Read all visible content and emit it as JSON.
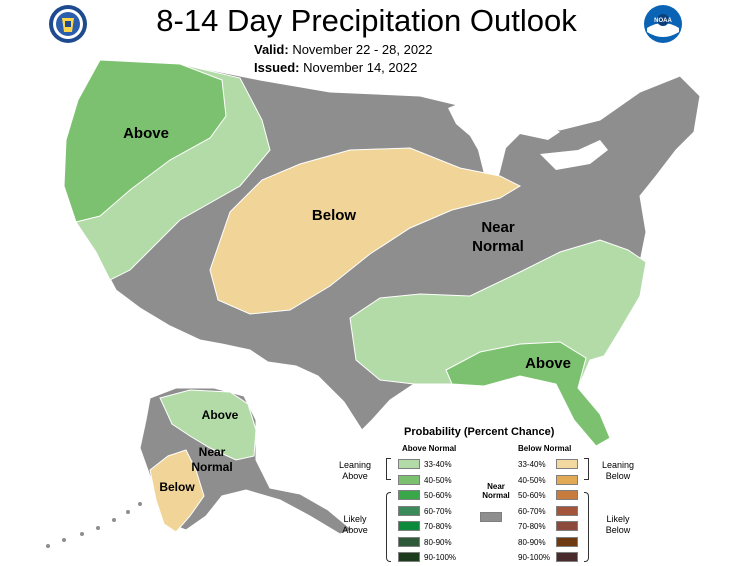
{
  "header": {
    "title": "8-14 Day Precipitation Outlook",
    "valid_label": "Valid:",
    "valid_value": "November 22 - 28, 2022",
    "issued_label": "Issued:",
    "issued_value": "November 14, 2022"
  },
  "logos": {
    "left": "doc-seal-icon",
    "right_text": "NOAA"
  },
  "map": {
    "labels": {
      "above_west": "Above",
      "below_central": "Below",
      "near_normal_line1": "Near",
      "near_normal_line2": "Normal",
      "above_southeast": "Above",
      "alaska_above": "Above",
      "alaska_near_line1": "Near",
      "alaska_near_line2": "Normal",
      "alaska_below": "Below"
    },
    "colors": {
      "near_normal": "#8e8e8e",
      "above_33_40": "#b3dba8",
      "above_40_50": "#7cc16f",
      "below_33_40": "#f1d598",
      "water": "#ffffff"
    }
  },
  "legend": {
    "title": "Probability (Percent Chance)",
    "above_head": "Above Normal",
    "below_head": "Below Normal",
    "near_head_1": "Near",
    "near_head_2": "Normal",
    "leaning_above_1": "Leaning",
    "leaning_above_2": "Above",
    "likely_above_1": "Likely",
    "likely_above_2": "Above",
    "leaning_below_1": "Leaning",
    "leaning_below_2": "Below",
    "likely_below_1": "Likely",
    "likely_below_2": "Below",
    "above_rows": [
      {
        "label": "33-40%",
        "color": "#b3dba8"
      },
      {
        "label": "40-50%",
        "color": "#7cc16f"
      },
      {
        "label": "50-60%",
        "color": "#3aa84a"
      },
      {
        "label": "60-70%",
        "color": "#3c8a5a"
      },
      {
        "label": "70-80%",
        "color": "#0b8a3c"
      },
      {
        "label": "80-90%",
        "color": "#2f5a3a"
      },
      {
        "label": "90-100%",
        "color": "#1d3b1d"
      }
    ],
    "below_rows": [
      {
        "label": "33-40%",
        "color": "#f3d9a0"
      },
      {
        "label": "40-50%",
        "color": "#e2aa55"
      },
      {
        "label": "50-60%",
        "color": "#c77b3c"
      },
      {
        "label": "60-70%",
        "color": "#a3543b"
      },
      {
        "label": "70-80%",
        "color": "#8c4a3c"
      },
      {
        "label": "80-90%",
        "color": "#6e3a12"
      },
      {
        "label": "90-100%",
        "color": "#4a2a2a"
      }
    ],
    "near_color": "#8e8e8e"
  }
}
